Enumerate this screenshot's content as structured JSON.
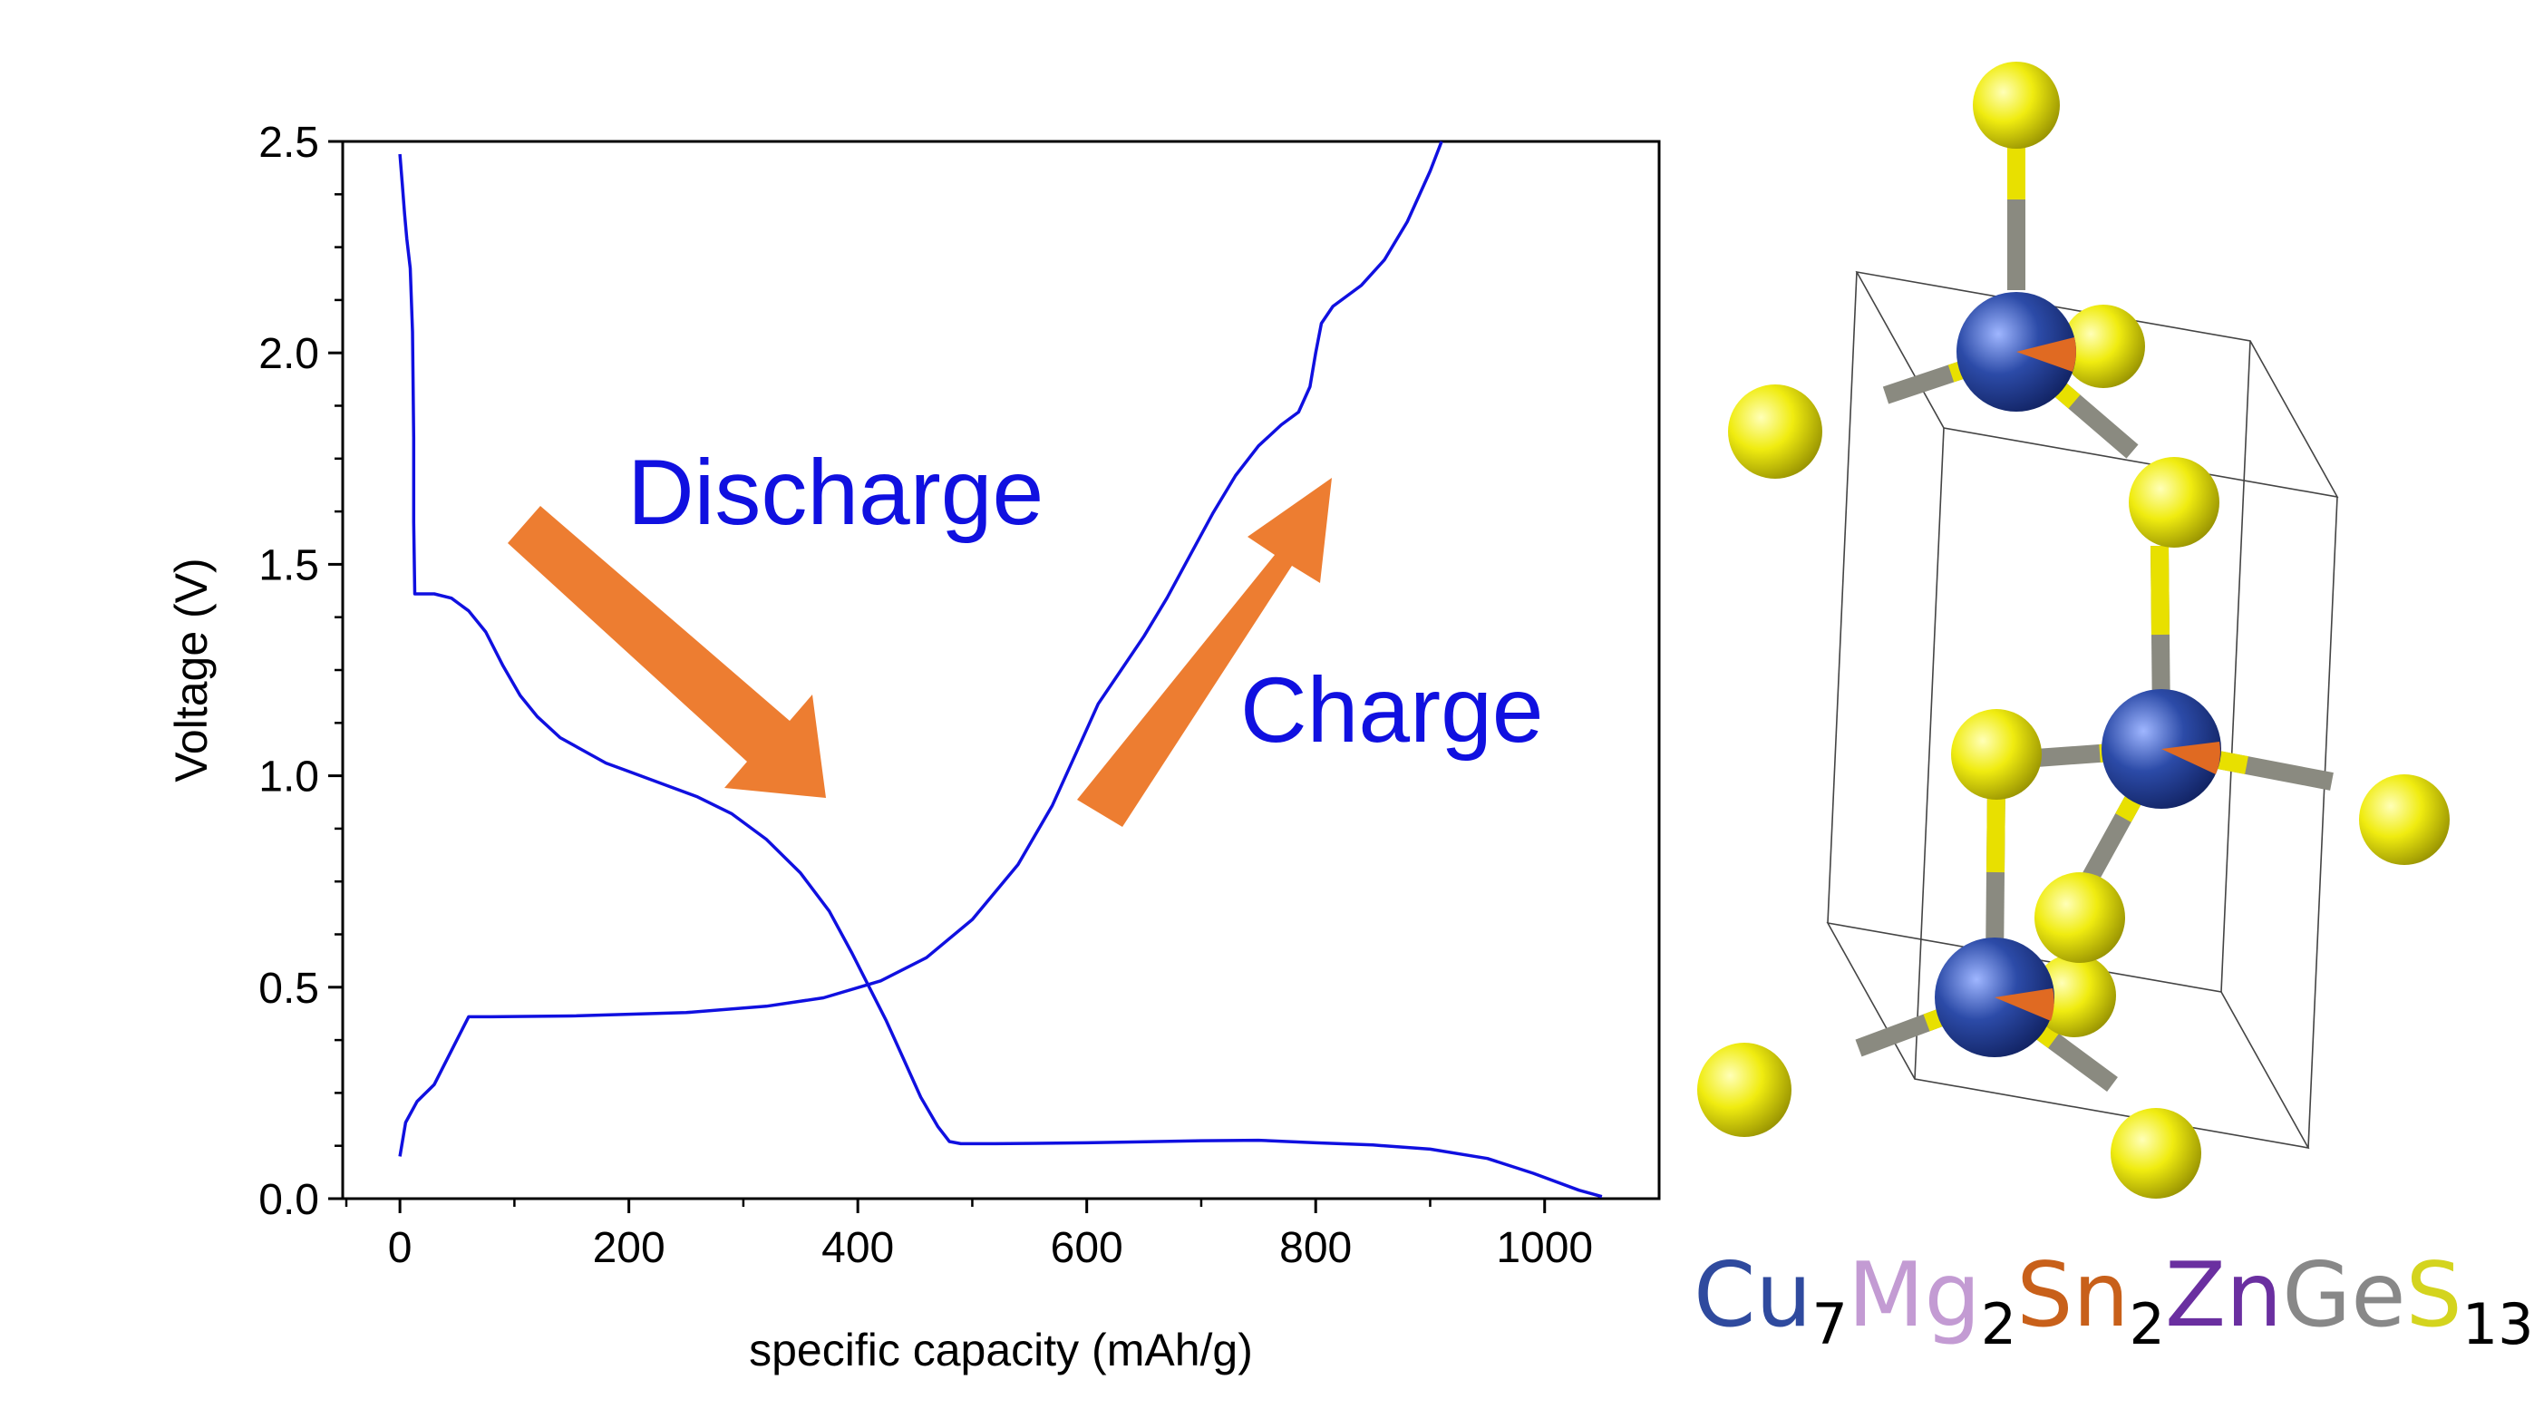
{
  "chart_data": {
    "type": "line",
    "xlabel": "specific capacity (mAh/g)",
    "ylabel": "Voltage (V)",
    "xlim": [
      -50,
      1100
    ],
    "ylim": [
      0,
      2.5
    ],
    "xticks": [
      "0",
      "200",
      "400",
      "600",
      "800",
      "1000"
    ],
    "yticks": [
      "0.0",
      "0.5",
      "1.0",
      "1.5",
      "2.0",
      "2.5"
    ],
    "grid": false,
    "legend": "none",
    "line_color": "#1010e0",
    "arrow_color": "#ed7d31",
    "annotations": [
      {
        "text": "Discharge"
      },
      {
        "text": "Charge"
      }
    ],
    "series": [
      {
        "points": [
          [
            0,
            2.47
          ],
          [
            2,
            2.4
          ],
          [
            4,
            2.33
          ],
          [
            6,
            2.27
          ],
          [
            9,
            2.2
          ],
          [
            11,
            2.05
          ],
          [
            12,
            1.8
          ],
          [
            12,
            1.6
          ],
          [
            13,
            1.43
          ],
          [
            18,
            1.43
          ],
          [
            30,
            1.43
          ],
          [
            45,
            1.42
          ],
          [
            60,
            1.39
          ],
          [
            75,
            1.34
          ],
          [
            90,
            1.26
          ],
          [
            105,
            1.19
          ],
          [
            120,
            1.14
          ],
          [
            140,
            1.09
          ],
          [
            160,
            1.06
          ],
          [
            180,
            1.03
          ],
          [
            200,
            1.01
          ],
          [
            230,
            0.98
          ],
          [
            260,
            0.95
          ],
          [
            290,
            0.91
          ],
          [
            320,
            0.85
          ],
          [
            350,
            0.77
          ],
          [
            375,
            0.68
          ],
          [
            395,
            0.58
          ],
          [
            410,
            0.5
          ],
          [
            425,
            0.42
          ],
          [
            440,
            0.33
          ],
          [
            455,
            0.24
          ],
          [
            470,
            0.17
          ],
          [
            480,
            0.135
          ],
          [
            490,
            0.13
          ],
          [
            520,
            0.13
          ],
          [
            600,
            0.132
          ],
          [
            700,
            0.137
          ],
          [
            750,
            0.138
          ],
          [
            800,
            0.132
          ],
          [
            850,
            0.127
          ],
          [
            900,
            0.117
          ],
          [
            950,
            0.095
          ],
          [
            990,
            0.06
          ],
          [
            1030,
            0.02
          ],
          [
            1050,
            0.005
          ]
        ]
      },
      {
        "points": [
          [
            0,
            0.1
          ],
          [
            5,
            0.18
          ],
          [
            15,
            0.23
          ],
          [
            30,
            0.27
          ],
          [
            45,
            0.35
          ],
          [
            60,
            0.43
          ],
          [
            80,
            0.43
          ],
          [
            150,
            0.432
          ],
          [
            250,
            0.44
          ],
          [
            320,
            0.455
          ],
          [
            370,
            0.475
          ],
          [
            420,
            0.515
          ],
          [
            460,
            0.57
          ],
          [
            500,
            0.66
          ],
          [
            540,
            0.79
          ],
          [
            570,
            0.93
          ],
          [
            590,
            1.05
          ],
          [
            610,
            1.17
          ],
          [
            630,
            1.25
          ],
          [
            650,
            1.33
          ],
          [
            670,
            1.42
          ],
          [
            690,
            1.52
          ],
          [
            710,
            1.62
          ],
          [
            730,
            1.71
          ],
          [
            750,
            1.78
          ],
          [
            770,
            1.83
          ],
          [
            785,
            1.86
          ],
          [
            795,
            1.92
          ],
          [
            800,
            2.0
          ],
          [
            805,
            2.07
          ],
          [
            815,
            2.11
          ],
          [
            840,
            2.16
          ],
          [
            860,
            2.22
          ],
          [
            880,
            2.31
          ],
          [
            900,
            2.43
          ],
          [
            910,
            2.5
          ]
        ]
      }
    ]
  },
  "structure": {
    "atom_colors": {
      "cation": "#2c4ba8",
      "sulfur": "#e8e000",
      "accent": "#e06a22",
      "bond": "#8a8a80"
    }
  },
  "formula": {
    "parts": [
      {
        "text": "Cu",
        "color": "#2f4a9e"
      },
      {
        "sub": "7"
      },
      {
        "text": "Mg",
        "color": "#c39bd3"
      },
      {
        "sub": "2"
      },
      {
        "text": "Sn",
        "color": "#c8601a"
      },
      {
        "sub": "2"
      },
      {
        "text": "Zn",
        "color": "#6a2fa0"
      },
      {
        "text": "Ge",
        "color": "#888888"
      },
      {
        "text": "S",
        "color": "#d4d41e"
      },
      {
        "sub": "13"
      }
    ]
  }
}
